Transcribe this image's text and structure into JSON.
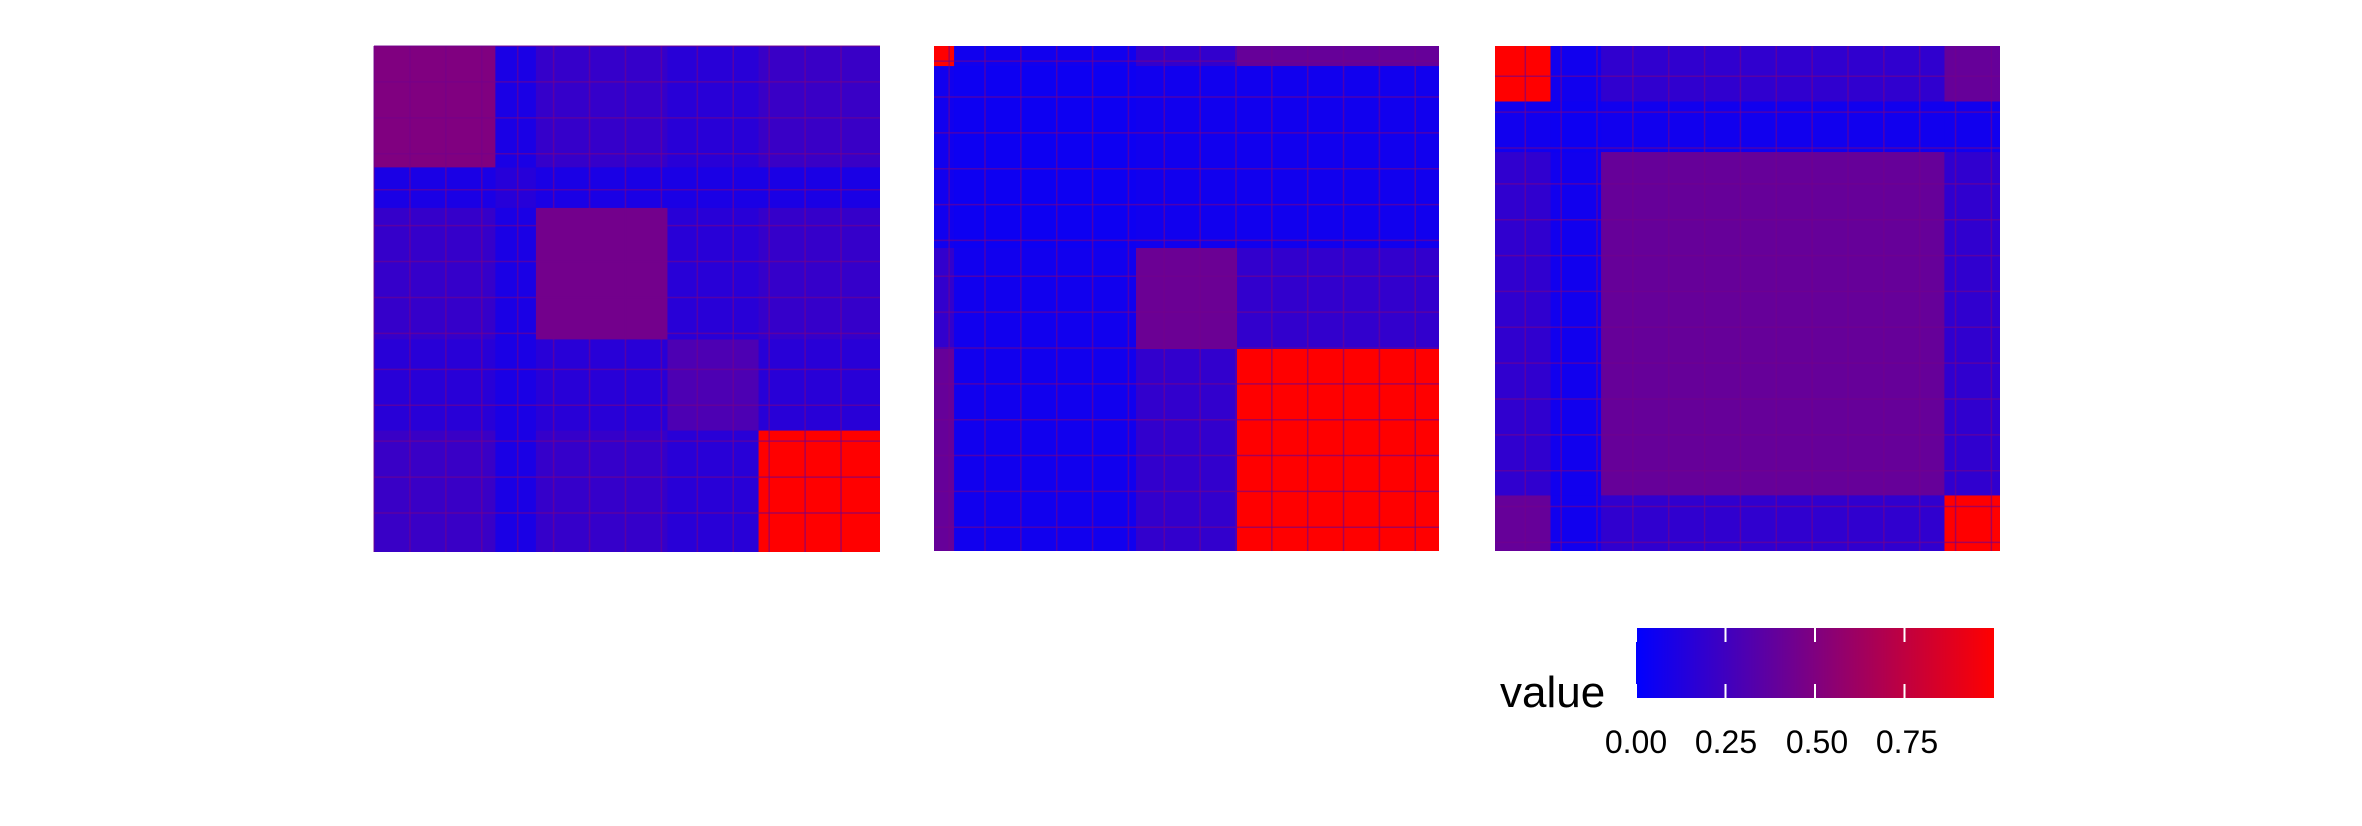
{
  "chart_data": {
    "type": "heatmap",
    "panels": [
      {
        "name": "",
        "blocks": [
          [
            0,
            0.24,
            0.5
          ],
          [
            0.24,
            0.28,
            0.15
          ],
          [
            0.32,
            0.26,
            0.45
          ],
          [
            0.58,
            0.42,
            0.3
          ],
          [
            0.76,
            0.24,
            1.0
          ]
        ],
        "background": 0.05
      },
      {
        "name": "",
        "blocks": [
          [
            0,
            0.04,
            1.0
          ],
          [
            0.04,
            0.36,
            0.05
          ],
          [
            0.4,
            0.56,
            0.42
          ],
          [
            0.6,
            0.4,
            1.0
          ]
        ],
        "background": 0.05
      },
      {
        "name": "",
        "blocks": [
          [
            0,
            0.11,
            1.0
          ],
          [
            0.11,
            0.1,
            0.05
          ],
          [
            0.21,
            0.68,
            0.4
          ],
          [
            0.89,
            0.11,
            1.0
          ]
        ],
        "background": 0.05
      }
    ],
    "legend": {
      "title": "value",
      "colors": [
        "#0000ff",
        "#ff0000"
      ],
      "range": [
        0,
        1
      ],
      "ticks": [
        "0.00",
        "0.25",
        "0.50",
        "0.75"
      ],
      "placement": "bottom-right"
    }
  }
}
